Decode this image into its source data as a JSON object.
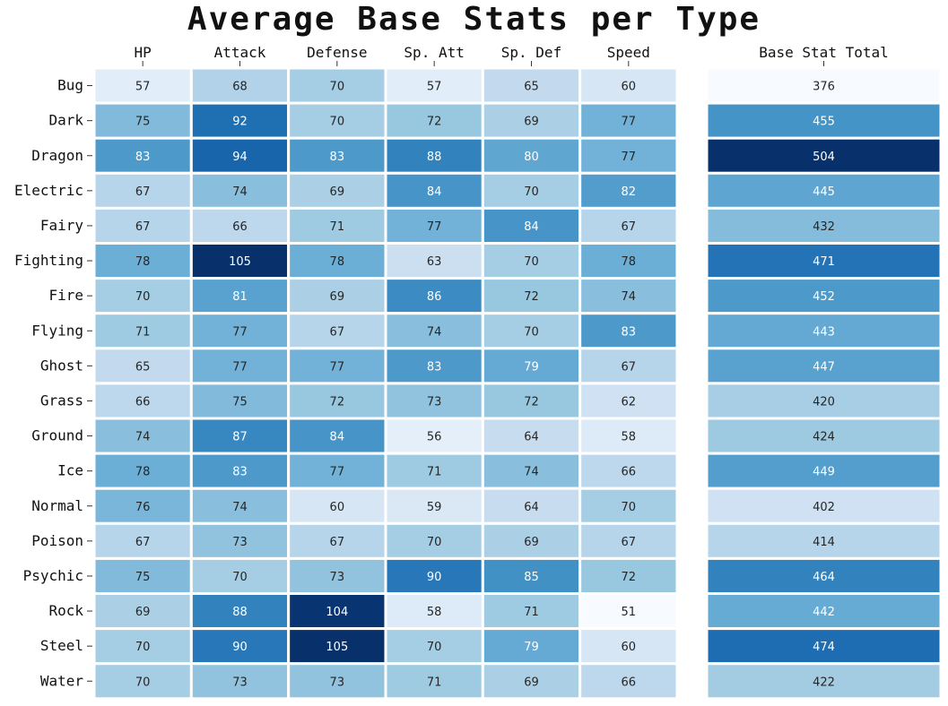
{
  "chart_data": {
    "type": "heatmap",
    "title": "Average Base Stats per Type",
    "columns": [
      "HP",
      "Attack",
      "Defense",
      "Sp. Att",
      "Sp. Def",
      "Speed"
    ],
    "total_column": "Base Stat Total",
    "rows": [
      "Bug",
      "Dark",
      "Dragon",
      "Electric",
      "Fairy",
      "Fighting",
      "Fire",
      "Flying",
      "Ghost",
      "Grass",
      "Ground",
      "Ice",
      "Normal",
      "Poison",
      "Psychic",
      "Rock",
      "Steel",
      "Water"
    ],
    "values": [
      [
        57,
        68,
        70,
        57,
        65,
        60
      ],
      [
        75,
        92,
        70,
        72,
        69,
        77
      ],
      [
        83,
        94,
        83,
        88,
        80,
        77
      ],
      [
        67,
        74,
        69,
        84,
        70,
        82
      ],
      [
        67,
        66,
        71,
        77,
        84,
        67
      ],
      [
        78,
        105,
        78,
        63,
        70,
        78
      ],
      [
        70,
        81,
        69,
        86,
        72,
        74
      ],
      [
        71,
        77,
        67,
        74,
        70,
        83
      ],
      [
        65,
        77,
        77,
        83,
        79,
        67
      ],
      [
        66,
        75,
        72,
        73,
        72,
        62
      ],
      [
        74,
        87,
        84,
        56,
        64,
        58
      ],
      [
        78,
        83,
        77,
        71,
        74,
        66
      ],
      [
        76,
        74,
        60,
        59,
        64,
        70
      ],
      [
        67,
        73,
        67,
        70,
        69,
        67
      ],
      [
        75,
        70,
        73,
        90,
        85,
        72
      ],
      [
        69,
        88,
        104,
        58,
        71,
        51
      ],
      [
        70,
        90,
        105,
        70,
        79,
        60
      ],
      [
        70,
        73,
        73,
        71,
        69,
        66
      ]
    ],
    "totals": [
      376,
      455,
      504,
      445,
      432,
      471,
      452,
      443,
      447,
      420,
      424,
      449,
      402,
      414,
      464,
      442,
      474,
      422
    ],
    "colormap": "Blues",
    "stats_range": [
      51,
      105
    ],
    "totals_range": [
      376,
      504
    ]
  }
}
